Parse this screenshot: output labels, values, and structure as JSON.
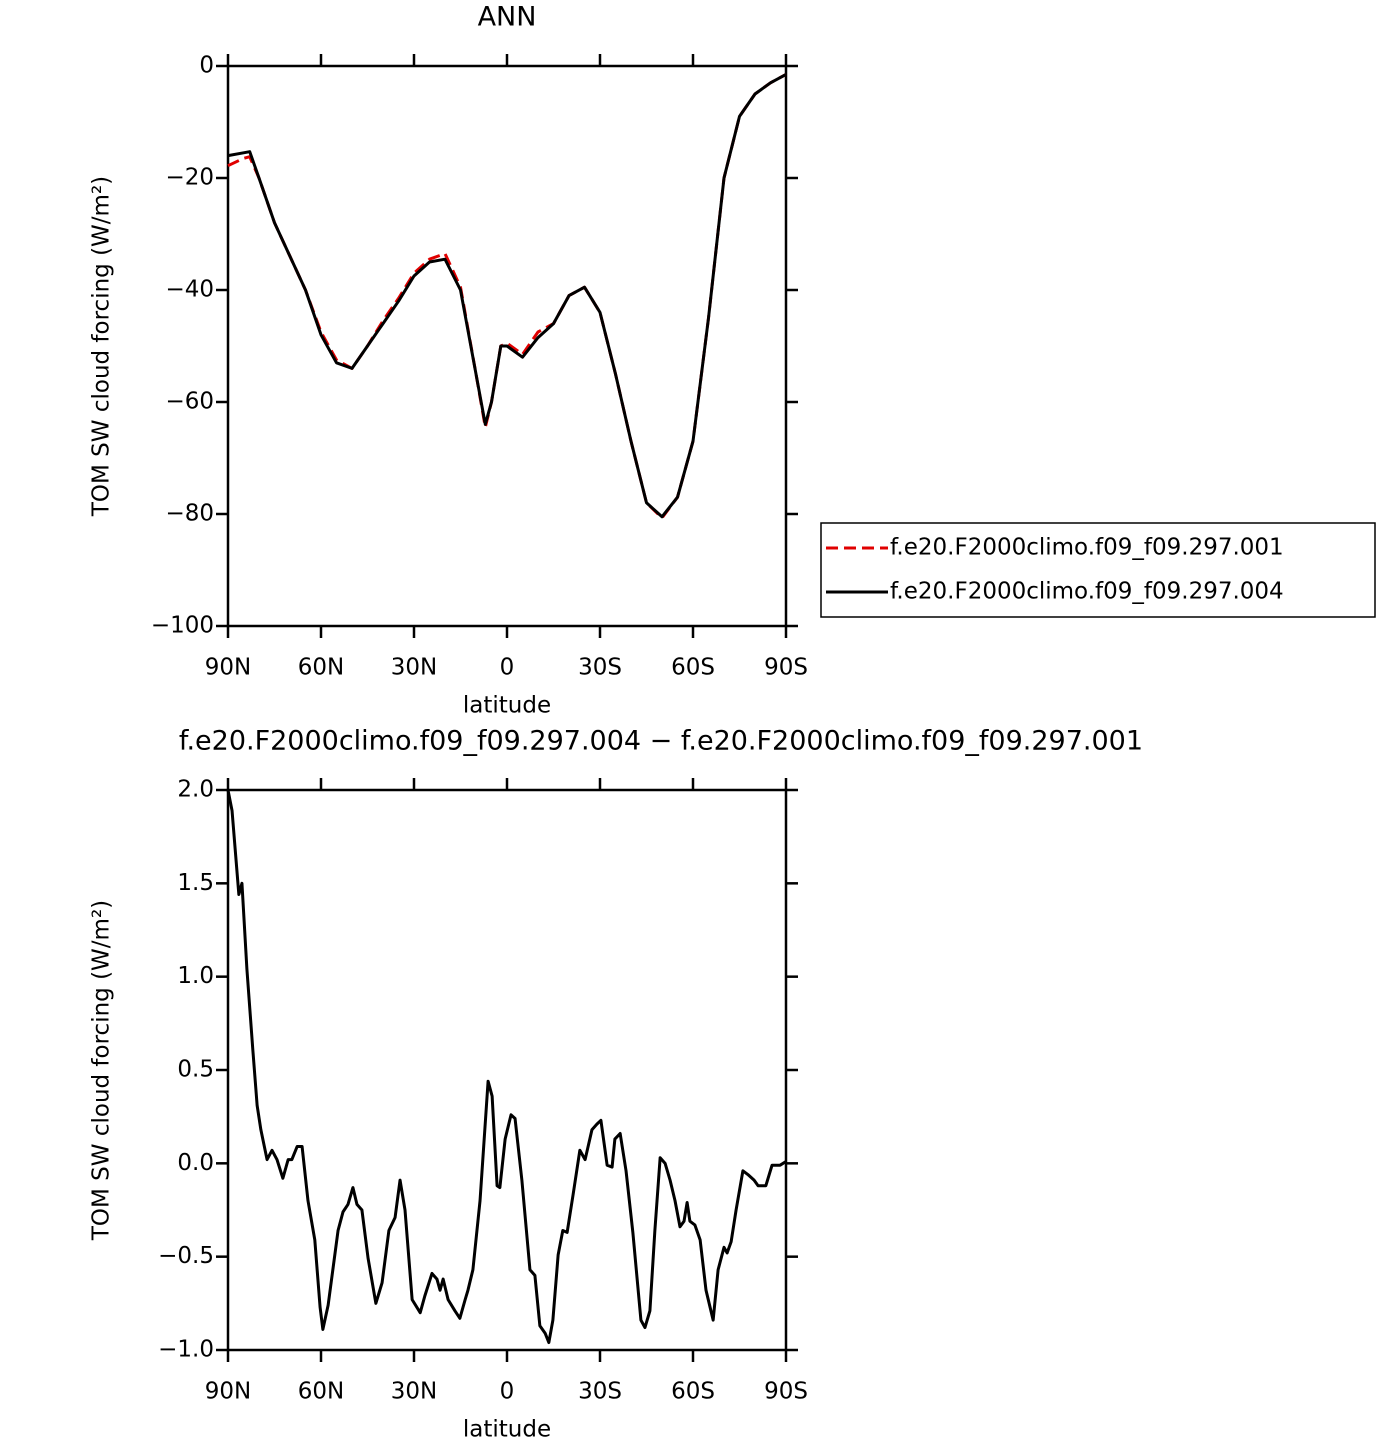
{
  "chart_data": [
    {
      "type": "line",
      "title": "ANN",
      "xlabel": "latitude",
      "ylabel": "TOM SW cloud forcing (W/m²)",
      "x": [
        90,
        85,
        83,
        80,
        75,
        70,
        65,
        60,
        55,
        50,
        45,
        40,
        35,
        30,
        25,
        20,
        15,
        10,
        7,
        5,
        2,
        0,
        -5,
        -10,
        -15,
        -20,
        -25,
        -30,
        -35,
        -40,
        -45,
        -50,
        -55,
        -60,
        -65,
        -70,
        -75,
        -80,
        -85,
        -90
      ],
      "series": [
        {
          "name": "f.e20.F2000climo.f09_f09.297.001",
          "color": "#e00000",
          "style": "dashed",
          "values": [
            -17.8,
            -16.5,
            -16.2,
            -20,
            -28,
            -34,
            -40,
            -47.5,
            -52.5,
            -54,
            -50,
            -45.5,
            -41.5,
            -37,
            -34.5,
            -33.5,
            -39.5,
            -55,
            -64.5,
            -60,
            -50,
            -49.5,
            -51.5,
            -47.5,
            -46,
            -41,
            -39.5,
            -44,
            -55,
            -67,
            -78,
            -80.7,
            -77,
            -67,
            -45,
            -20,
            -9,
            -5,
            -3,
            -1.5
          ]
        },
        {
          "name": "f.e20.F2000climo.f09_f09.297.004",
          "color": "#000000",
          "style": "solid",
          "values": [
            -16,
            -15.5,
            -15.3,
            -20,
            -28,
            -34,
            -40,
            -48,
            -53,
            -54,
            -50,
            -46,
            -42,
            -37.5,
            -35,
            -34.5,
            -40,
            -55,
            -64,
            -60,
            -50,
            -50,
            -52,
            -48.5,
            -46,
            -41,
            -39.5,
            -44,
            -55,
            -67,
            -78,
            -80.5,
            -77,
            -67,
            -45,
            -20,
            -9,
            -5,
            -3,
            -1.5
          ]
        }
      ],
      "xlim": [
        90,
        -90
      ],
      "xticks": [
        {
          "value": 90,
          "label": "90N"
        },
        {
          "value": 60,
          "label": "60N"
        },
        {
          "value": 30,
          "label": "30N"
        },
        0,
        {
          "value": -30,
          "label": "30S"
        },
        {
          "value": -60,
          "label": "60S"
        },
        {
          "value": -90,
          "label": "90S"
        }
      ],
      "ylim": [
        -100,
        0
      ],
      "yticks": [
        0,
        {
          "value": -20,
          "label": "−20"
        },
        {
          "value": -40,
          "label": "−40"
        },
        {
          "value": -60,
          "label": "−60"
        },
        {
          "value": -80,
          "label": "−80"
        },
        {
          "value": -100,
          "label": "−100"
        }
      ],
      "legend": "right"
    },
    {
      "type": "line",
      "title": "f.e20.F2000climo.f09_f09.297.004 − f.e20.F2000climo.f09_f09.297.001",
      "xlabel": "latitude",
      "ylabel": "TOM SW cloud forcing (W/m²)",
      "x": [
        90,
        88.7,
        86.5,
        85.5,
        83.9,
        82,
        80.6,
        79.4,
        77.4,
        75.8,
        74.2,
        72.3,
        70.6,
        69.4,
        67.7,
        66.1,
        64.2,
        62,
        60.3,
        59.4,
        57.7,
        56.1,
        54.5,
        52.9,
        51.3,
        49.7,
        48.4,
        46.8,
        44.8,
        42.3,
        40.3,
        38.1,
        36.1,
        34.5,
        32.9,
        30.6,
        28,
        26.5,
        24.2,
        22.6,
        21.6,
        20.6,
        19,
        16.8,
        15.2,
        13.5,
        12.6,
        11,
        8.7,
        6.1,
        4.8,
        3.2,
        2.3,
        0.6,
        -1.3,
        -2.6,
        -4.8,
        -7.4,
        -9,
        -10.6,
        -12.3,
        -13.5,
        -14.8,
        -16.5,
        -18,
        -19.4,
        -21.3,
        -23.5,
        -25.2,
        -27.4,
        -29,
        -30.3,
        -32.3,
        -33.9,
        -34.8,
        -36.5,
        -38.4,
        -40.6,
        -43.2,
        -44.5,
        -46.1,
        -47.7,
        -49.4,
        -51,
        -52.6,
        -54.2,
        -55.8,
        -57.1,
        -58.1,
        -59,
        -60.6,
        -62.3,
        -64.2,
        -66.5,
        -68.1,
        -70,
        -71,
        -72.3,
        -73.9,
        -76.1,
        -77.7,
        -79.7,
        -81,
        -83.5,
        -85.5,
        -88.1,
        -90
      ],
      "series": [
        {
          "color": "#000000",
          "style": "solid",
          "values": [
            2.0,
            1.89,
            1.44,
            1.5,
            1.04,
            0.61,
            0.31,
            0.18,
            0.02,
            0.07,
            0.02,
            -0.08,
            0.02,
            0.02,
            0.09,
            0.09,
            -0.2,
            -0.41,
            -0.77,
            -0.89,
            -0.76,
            -0.56,
            -0.36,
            -0.26,
            -0.22,
            -0.13,
            -0.22,
            -0.25,
            -0.51,
            -0.75,
            -0.64,
            -0.36,
            -0.29,
            -0.09,
            -0.25,
            -0.73,
            -0.8,
            -0.71,
            -0.59,
            -0.62,
            -0.68,
            -0.62,
            -0.73,
            -0.79,
            -0.83,
            -0.73,
            -0.68,
            -0.57,
            -0.2,
            0.44,
            0.36,
            -0.12,
            -0.13,
            0.13,
            0.26,
            0.24,
            -0.09,
            -0.57,
            -0.6,
            -0.87,
            -0.91,
            -0.96,
            -0.84,
            -0.49,
            -0.36,
            -0.37,
            -0.17,
            0.07,
            0.02,
            0.18,
            0.21,
            0.23,
            -0.01,
            -0.02,
            0.13,
            0.16,
            -0.04,
            -0.37,
            -0.84,
            -0.88,
            -0.79,
            -0.36,
            0.03,
            0,
            -0.09,
            -0.2,
            -0.34,
            -0.31,
            -0.21,
            -0.31,
            -0.33,
            -0.41,
            -0.68,
            -0.84,
            -0.57,
            -0.45,
            -0.48,
            -0.42,
            -0.25,
            -0.04,
            -0.06,
            -0.09,
            -0.12,
            -0.12,
            -0.01,
            -0.01,
            0.01
          ]
        }
      ],
      "xlim": [
        90,
        -90
      ],
      "xticks": [
        {
          "value": 90,
          "label": "90N"
        },
        {
          "value": 60,
          "label": "60N"
        },
        {
          "value": 30,
          "label": "30N"
        },
        0,
        {
          "value": -30,
          "label": "30S"
        },
        {
          "value": -60,
          "label": "60S"
        },
        {
          "value": -90,
          "label": "90S"
        }
      ],
      "ylim": [
        -1.0,
        2.0
      ],
      "yticks": [
        {
          "value": 2.0,
          "label": "2.0"
        },
        {
          "value": 1.5,
          "label": "1.5"
        },
        {
          "value": 1.0,
          "label": "1.0"
        },
        {
          "value": 0.5,
          "label": "0.5"
        },
        {
          "value": 0.0,
          "label": "0.0"
        },
        {
          "value": -0.5,
          "label": "−0.5"
        },
        {
          "value": -1.0,
          "label": "−1.0"
        }
      ]
    }
  ]
}
